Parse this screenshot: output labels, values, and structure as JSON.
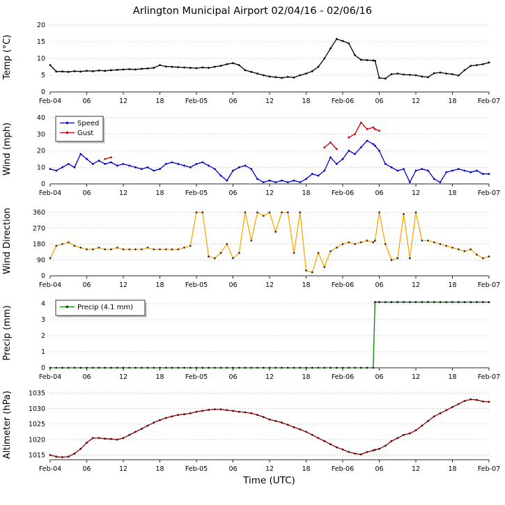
{
  "chart_data": {
    "type": "line",
    "title": "Arlington Municipal Airport 02/04/16 - 02/06/16",
    "xlabel": "Time (UTC)",
    "grid": "on",
    "x_hours": [
      0,
      1,
      2,
      3,
      4,
      5,
      6,
      7,
      8,
      9,
      10,
      11,
      12,
      13,
      14,
      15,
      16,
      17,
      18,
      19,
      20,
      21,
      22,
      23,
      24,
      25,
      26,
      27,
      28,
      29,
      30,
      31,
      32,
      33,
      34,
      35,
      36,
      37,
      38,
      39,
      40,
      41,
      42,
      43,
      44,
      45,
      46,
      47,
      48,
      49,
      50,
      51,
      52,
      53,
      53.3,
      54,
      55,
      56,
      57,
      58,
      59,
      60,
      61,
      62,
      63,
      64,
      65,
      66,
      67,
      68,
      69,
      70,
      71,
      72
    ],
    "x_ticks": [
      {
        "h": 0,
        "label": "Feb-04"
      },
      {
        "h": 6,
        "label": "06"
      },
      {
        "h": 12,
        "label": "12"
      },
      {
        "h": 18,
        "label": "18"
      },
      {
        "h": 24,
        "label": "Feb-05"
      },
      {
        "h": 30,
        "label": "06"
      },
      {
        "h": 36,
        "label": "12"
      },
      {
        "h": 42,
        "label": "18"
      },
      {
        "h": 48,
        "label": "Feb-06"
      },
      {
        "h": 54,
        "label": "06"
      },
      {
        "h": 60,
        "label": "12"
      },
      {
        "h": 66,
        "label": "18"
      },
      {
        "h": 72,
        "label": "Feb-07"
      }
    ],
    "style": {
      "grid_color": "#9e9e9e",
      "axis_color": "#262626"
    },
    "panels": [
      {
        "id": "temp",
        "ylabel": "Temp (°C)",
        "ylim": [
          0,
          20.8
        ],
        "yticks": [
          0,
          5,
          10,
          15,
          20
        ],
        "legend": false,
        "series": [
          {
            "name": "Temp",
            "color": "#000000",
            "marker_color": "#000000",
            "values": [
              8.0,
              6.1,
              6.1,
              6.0,
              6.2,
              6.1,
              6.3,
              6.2,
              6.4,
              6.3,
              6.5,
              6.6,
              6.7,
              6.8,
              6.7,
              6.9,
              7.0,
              7.2,
              8.0,
              7.6,
              7.5,
              7.4,
              7.3,
              7.2,
              7.1,
              7.3,
              7.2,
              7.5,
              7.8,
              8.3,
              8.6,
              8.0,
              6.5,
              6.0,
              5.5,
              5.0,
              4.6,
              4.4,
              4.2,
              4.5,
              4.3,
              5.0,
              5.5,
              6.2,
              7.5,
              10.0,
              13.0,
              15.8,
              15.2,
              14.5,
              11.0,
              9.6,
              9.5,
              9.4,
              9.3,
              4.2,
              4.0,
              5.3,
              5.5,
              5.2,
              5.1,
              5.0,
              4.6,
              4.4,
              5.6,
              5.8,
              5.5,
              5.3,
              4.9,
              6.5,
              7.8,
              8.0,
              8.3,
              8.8
            ]
          }
        ]
      },
      {
        "id": "wind",
        "ylabel": "Wind (mph)",
        "ylim": [
          0,
          42
        ],
        "yticks": [
          0,
          10,
          20,
          30,
          40
        ],
        "legend": true,
        "series": [
          {
            "name": "Speed",
            "color": "#0000cc",
            "marker_color": "#0000cc",
            "values": [
              9,
              8,
              10,
              12,
              10,
              18,
              15,
              12,
              14,
              12,
              13,
              11,
              12,
              11,
              10,
              9,
              10,
              8,
              9,
              12,
              13,
              12,
              11,
              10,
              12,
              13,
              11,
              9,
              5,
              2,
              8,
              10,
              11,
              9,
              3,
              1,
              2,
              1,
              2,
              1,
              2,
              1,
              3,
              6,
              5,
              8,
              16,
              12,
              15,
              20,
              18,
              22,
              26,
              24,
              23,
              20,
              12,
              10,
              8,
              9,
              1,
              8,
              9,
              8,
              3,
              1,
              7,
              8,
              9,
              8,
              7,
              8,
              6,
              6
            ]
          },
          {
            "name": "Gust",
            "color": "#cc0000",
            "marker_color": "#cc0000",
            "values": [
              null,
              null,
              null,
              null,
              null,
              null,
              null,
              null,
              null,
              15,
              16,
              null,
              null,
              null,
              null,
              null,
              null,
              null,
              null,
              null,
              null,
              null,
              null,
              null,
              null,
              null,
              null,
              null,
              null,
              null,
              null,
              null,
              null,
              null,
              null,
              null,
              null,
              null,
              null,
              null,
              null,
              null,
              null,
              null,
              null,
              22,
              25,
              21,
              null,
              28,
              30,
              37,
              33,
              34,
              33,
              32,
              null,
              null,
              null,
              null,
              null,
              null,
              null,
              null,
              null,
              null,
              null,
              null,
              null,
              null,
              null,
              null,
              null,
              null
            ]
          }
        ]
      },
      {
        "id": "winddir",
        "ylabel": "Wind Direction",
        "ylim": [
          0,
          395
        ],
        "yticks": [
          0,
          90,
          180,
          270,
          360
        ],
        "legend": false,
        "series": [
          {
            "name": "Direction",
            "color": "#ffa500",
            "marker_color": "#333333",
            "values": [
              100,
              170,
              180,
              190,
              170,
              160,
              150,
              150,
              160,
              150,
              150,
              160,
              150,
              150,
              150,
              150,
              160,
              150,
              150,
              150,
              150,
              150,
              160,
              170,
              360,
              360,
              110,
              100,
              130,
              180,
              100,
              130,
              360,
              200,
              360,
              340,
              360,
              250,
              360,
              360,
              130,
              360,
              30,
              20,
              130,
              50,
              140,
              160,
              180,
              190,
              180,
              190,
              200,
              190,
              200,
              360,
              180,
              90,
              100,
              350,
              100,
              360,
              200,
              200,
              190,
              180,
              170,
              160,
              150,
              140,
              150,
              120,
              100,
              110
            ]
          }
        ]
      },
      {
        "id": "precip",
        "ylabel": "Precip (mm)",
        "ylim": [
          0,
          4.35
        ],
        "yticks": [
          0,
          1,
          2,
          3,
          4
        ],
        "legend": true,
        "series": [
          {
            "name": "Precip (4.1 mm)",
            "color": "#008000",
            "marker_color": "#1a1a1a",
            "values": [
              0,
              0,
              0,
              0,
              0,
              0,
              0,
              0,
              0,
              0,
              0,
              0,
              0,
              0,
              0,
              0,
              0,
              0,
              0,
              0,
              0,
              0,
              0,
              0,
              0,
              0,
              0,
              0,
              0,
              0,
              0,
              0,
              0,
              0,
              0,
              0,
              0,
              0,
              0,
              0,
              0,
              0,
              0,
              0,
              0,
              0,
              0,
              0,
              0,
              0,
              0,
              0,
              0,
              0,
              4.1,
              4.1,
              4.1,
              4.1,
              4.1,
              4.1,
              4.1,
              4.1,
              4.1,
              4.1,
              4.1,
              4.1,
              4.1,
              4.1,
              4.1,
              4.1,
              4.1,
              4.1,
              4.1,
              4.1
            ]
          }
        ]
      },
      {
        "id": "altimeter",
        "ylabel": "Altimeter (hPa)",
        "ylim": [
          1013.5,
          1036
        ],
        "yticks": [
          1015,
          1020,
          1025,
          1030,
          1035
        ],
        "legend": false,
        "series": [
          {
            "name": "Altimeter",
            "color": "#8b0000",
            "marker_color": "#5a0000",
            "values": [
              1015.0,
              1014.5,
              1014.3,
              1014.5,
              1015.5,
              1017.0,
              1019.0,
              1020.5,
              1020.5,
              1020.3,
              1020.2,
              1020.0,
              1020.5,
              1021.5,
              1022.5,
              1023.5,
              1024.5,
              1025.5,
              1026.3,
              1027.0,
              1027.5,
              1028.0,
              1028.2,
              1028.5,
              1029.0,
              1029.3,
              1029.6,
              1029.8,
              1029.8,
              1029.5,
              1029.3,
              1029.0,
              1028.8,
              1028.5,
              1028.0,
              1027.3,
              1026.5,
              1026.0,
              1025.5,
              1024.8,
              1024.0,
              1023.3,
              1022.5,
              1021.5,
              1020.5,
              1019.5,
              1018.5,
              1017.5,
              1016.8,
              1016.0,
              1015.5,
              1015.2,
              1016.0,
              1016.5,
              1016.7,
              1017.0,
              1018.0,
              1019.5,
              1020.5,
              1021.5,
              1022.0,
              1023.0,
              1024.5,
              1026.0,
              1027.5,
              1028.5,
              1029.5,
              1030.5,
              1031.5,
              1032.5,
              1033.0,
              1032.8,
              1032.3,
              1032.2
            ]
          }
        ]
      }
    ]
  }
}
